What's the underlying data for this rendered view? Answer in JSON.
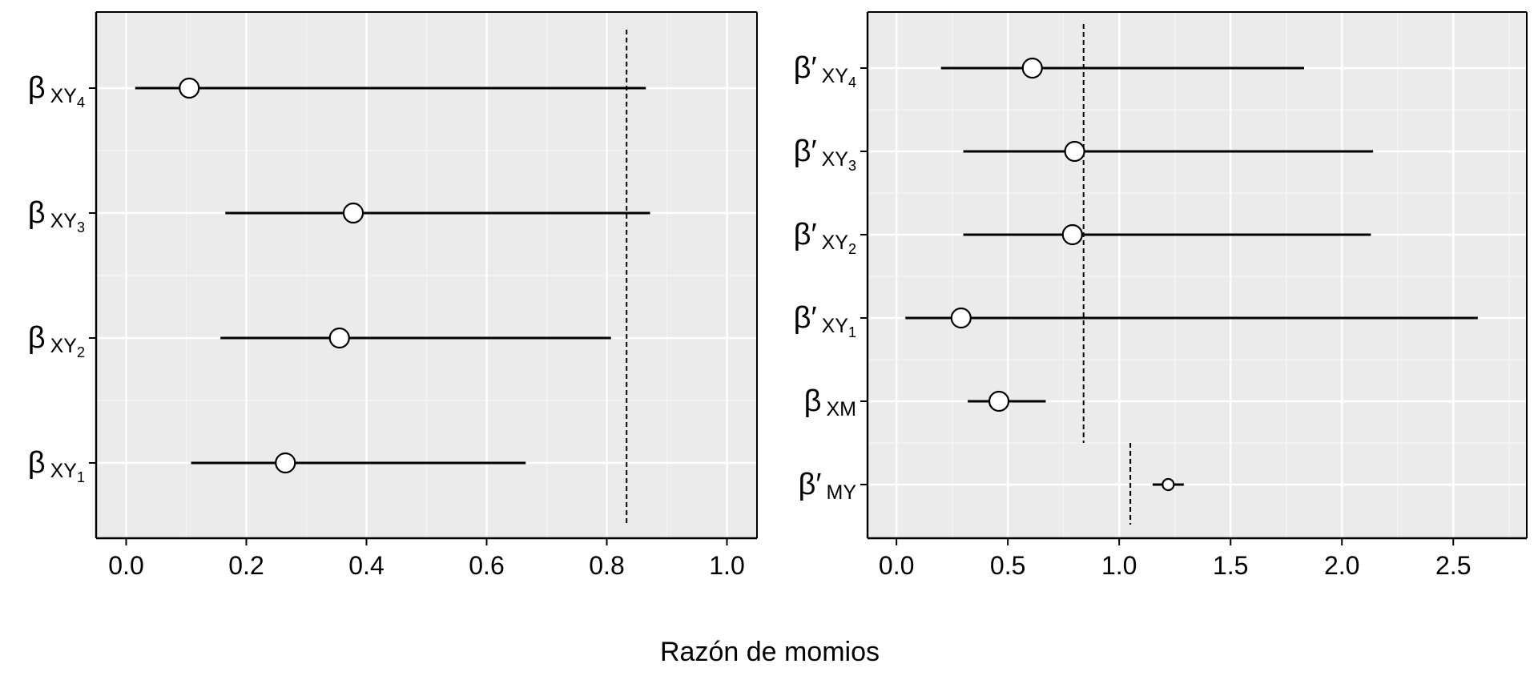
{
  "x_title": "Razón de momios",
  "colors": {
    "panel_bg": "#ebebeb",
    "grid_major": "#ffffff",
    "grid_minor": "#f5f5f5",
    "line": "#000000",
    "point_fill": "#ffffff"
  },
  "chart_data": [
    {
      "type": "forest",
      "xlim": [
        -0.05,
        1.05
      ],
      "x_ticks": [
        0.0,
        0.2,
        0.4,
        0.6,
        0.8,
        1.0
      ],
      "x_tick_labels": [
        "0.0",
        "0.2",
        "0.4",
        "0.6",
        "0.8",
        "1.0"
      ],
      "grid": true,
      "reference_lines": [
        {
          "x": 0.833,
          "rows": "all"
        }
      ],
      "rows": [
        {
          "label": {
            "sym": "β",
            "prime": "",
            "sub": "XY",
            "subsub": "4"
          },
          "estimate": 0.105,
          "lower": 0.015,
          "upper": 0.865,
          "point_size": "large"
        },
        {
          "label": {
            "sym": "β",
            "prime": "",
            "sub": "XY",
            "subsub": "3"
          },
          "estimate": 0.378,
          "lower": 0.165,
          "upper": 0.872,
          "point_size": "large"
        },
        {
          "label": {
            "sym": "β",
            "prime": "",
            "sub": "XY",
            "subsub": "2"
          },
          "estimate": 0.355,
          "lower": 0.157,
          "upper": 0.807,
          "point_size": "large"
        },
        {
          "label": {
            "sym": "β",
            "prime": "",
            "sub": "XY",
            "subsub": "1"
          },
          "estimate": 0.265,
          "lower": 0.108,
          "upper": 0.665,
          "point_size": "large"
        }
      ]
    },
    {
      "type": "forest",
      "xlim": [
        -0.13,
        2.83
      ],
      "x_ticks": [
        0.0,
        0.5,
        1.0,
        1.5,
        2.0,
        2.5
      ],
      "x_tick_labels": [
        "0.0",
        "0.5",
        "1.0",
        "1.5",
        "2.0",
        "2.5"
      ],
      "grid": true,
      "reference_lines": [
        {
          "x": 0.84,
          "rows": "0-4"
        },
        {
          "x": 1.05,
          "rows": "5"
        }
      ],
      "rows": [
        {
          "label": {
            "sym": "β",
            "prime": "′",
            "sub": "XY",
            "subsub": "4"
          },
          "estimate": 0.61,
          "lower": 0.2,
          "upper": 1.83,
          "point_size": "large"
        },
        {
          "label": {
            "sym": "β",
            "prime": "′",
            "sub": "XY",
            "subsub": "3"
          },
          "estimate": 0.8,
          "lower": 0.3,
          "upper": 2.14,
          "point_size": "large"
        },
        {
          "label": {
            "sym": "β",
            "prime": "′",
            "sub": "XY",
            "subsub": "2"
          },
          "estimate": 0.79,
          "lower": 0.3,
          "upper": 2.13,
          "point_size": "large"
        },
        {
          "label": {
            "sym": "β",
            "prime": "′",
            "sub": "XY",
            "subsub": "1"
          },
          "estimate": 0.29,
          "lower": 0.04,
          "upper": 2.61,
          "point_size": "large"
        },
        {
          "label": {
            "sym": "β",
            "prime": "",
            "sub": "XM",
            "subsub": ""
          },
          "estimate": 0.46,
          "lower": 0.32,
          "upper": 0.67,
          "point_size": "large"
        },
        {
          "label": {
            "sym": "β",
            "prime": "′",
            "sub": "MY",
            "subsub": ""
          },
          "estimate": 1.22,
          "lower": 1.15,
          "upper": 1.29,
          "point_size": "small"
        }
      ]
    }
  ]
}
